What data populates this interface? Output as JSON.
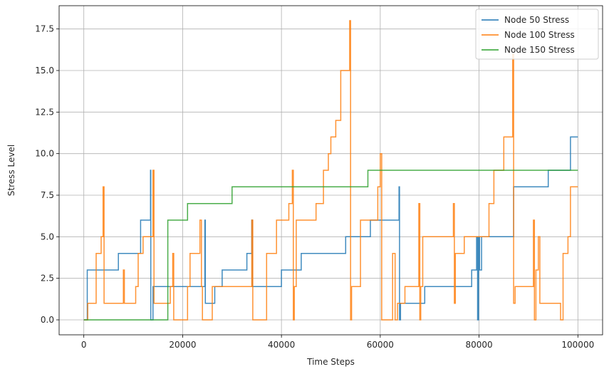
{
  "chart_data": {
    "type": "line",
    "title": "",
    "xlabel": "Time Steps",
    "ylabel": "Stress Level",
    "xlim": [
      -5000,
      105000
    ],
    "ylim": [
      -0.9,
      18.9
    ],
    "xticks": [
      0,
      20000,
      40000,
      60000,
      80000,
      100000
    ],
    "xtick_labels": [
      "0",
      "20000",
      "40000",
      "60000",
      "80000",
      "100000"
    ],
    "yticks": [
      0,
      2.5,
      5,
      7.5,
      10,
      12.5,
      15,
      17.5
    ],
    "ytick_labels": [
      "0.0",
      "2.5",
      "5.0",
      "7.5",
      "10.0",
      "12.5",
      "15.0",
      "17.5"
    ],
    "grid": true,
    "legend_position": "top-right",
    "series": [
      {
        "name": "Node 50 Stress",
        "color": "#1f77b4",
        "x": [
          0,
          500,
          700,
          700,
          7000,
          7000,
          11500,
          11500,
          13500,
          13500,
          13550,
          13550,
          14000,
          14000,
          24500,
          24500,
          24600,
          24600,
          26500,
          26500,
          28000,
          28000,
          33000,
          33000,
          34000,
          34000,
          34100,
          34100,
          40000,
          40000,
          44000,
          44000,
          53000,
          53000,
          58000,
          58000,
          63800,
          63800,
          63900,
          63900,
          64100,
          64100,
          69000,
          69000,
          78500,
          78500,
          79500,
          79500,
          79700,
          79700,
          79900,
          79900,
          80100,
          80100,
          80500,
          80500,
          87000,
          87000,
          94000,
          94000,
          98500,
          98500,
          100000
        ],
        "y": [
          0,
          0,
          0,
          3,
          3,
          4,
          4,
          6,
          6,
          9,
          9,
          0,
          0,
          2,
          2,
          6,
          6,
          1,
          1,
          2,
          2,
          3,
          3,
          4,
          4,
          6,
          6,
          2,
          2,
          3,
          3,
          4,
          4,
          5,
          5,
          6,
          6,
          8,
          8,
          0,
          0,
          1,
          1,
          2,
          2,
          3,
          3,
          5,
          5,
          0,
          0,
          5,
          5,
          3,
          3,
          5,
          5,
          8,
          8,
          9,
          9,
          11,
          11
        ]
      },
      {
        "name": "Node 100 Stress",
        "color": "#ff7f0e",
        "x": [
          0,
          800,
          800,
          2500,
          2500,
          3500,
          3500,
          3900,
          3900,
          4100,
          4100,
          8000,
          8000,
          8200,
          8200,
          10500,
          10500,
          11000,
          11000,
          12000,
          12000,
          14000,
          14000,
          14200,
          14200,
          17500,
          17500,
          18000,
          18000,
          18200,
          18200,
          21000,
          21000,
          21500,
          21500,
          23500,
          23500,
          23800,
          23800,
          24000,
          24000,
          26000,
          26000,
          27000,
          27000,
          34000,
          34000,
          34200,
          34200,
          37000,
          37000,
          39000,
          39000,
          41500,
          41500,
          42200,
          42200,
          42400,
          42400,
          42600,
          42600,
          43000,
          43000,
          47000,
          47000,
          48500,
          48500,
          49500,
          49500,
          50000,
          50000,
          51000,
          51000,
          52000,
          52000,
          53800,
          53800,
          54000,
          54000,
          54200,
          54200,
          56000,
          56000,
          59500,
          59500,
          60000,
          60000,
          60300,
          60300,
          62500,
          62500,
          63000,
          63000,
          63500,
          63500,
          65000,
          65000,
          67000,
          67000,
          67800,
          67800,
          68000,
          68000,
          68200,
          68200,
          68600,
          68600,
          72000,
          72000,
          74800,
          74800,
          75000,
          75000,
          75200,
          75200,
          77000,
          77000,
          80000,
          80000,
          82000,
          82000,
          83000,
          83000,
          85000,
          85000,
          86800,
          86800,
          87000,
          87000,
          87300,
          87300,
          88000,
          88000,
          91000,
          91000,
          91200,
          91200,
          91500,
          91500,
          92000,
          92000,
          92300,
          92300,
          96500,
          96500,
          97000,
          97000,
          98000,
          98000,
          98500,
          98500,
          100000
        ],
        "y": [
          0,
          0,
          1,
          1,
          4,
          4,
          5,
          5,
          8,
          8,
          1,
          1,
          3,
          3,
          1,
          1,
          2,
          2,
          4,
          4,
          5,
          5,
          9,
          9,
          1,
          1,
          2,
          2,
          4,
          4,
          0,
          0,
          2,
          2,
          4,
          4,
          6,
          6,
          2,
          2,
          0,
          0,
          2,
          2,
          2,
          2,
          6,
          6,
          0,
          0,
          4,
          4,
          6,
          6,
          7,
          7,
          9,
          9,
          0,
          0,
          2,
          2,
          6,
          6,
          7,
          7,
          9,
          9,
          10,
          10,
          11,
          11,
          12,
          12,
          15,
          15,
          18,
          18,
          0,
          0,
          2,
          2,
          6,
          6,
          8,
          8,
          10,
          10,
          0,
          0,
          4,
          4,
          0,
          0,
          1,
          1,
          2,
          2,
          2,
          2,
          7,
          7,
          0,
          0,
          2,
          2,
          5,
          5,
          5,
          5,
          7,
          7,
          1,
          1,
          4,
          4,
          5,
          5,
          5,
          5,
          7,
          7,
          9,
          9,
          11,
          11,
          16,
          16,
          1,
          1,
          2,
          2,
          2,
          2,
          6,
          6,
          0,
          0,
          3,
          3,
          5,
          5,
          1,
          1,
          0,
          0,
          4,
          4,
          5,
          5,
          8,
          8
        ]
      },
      {
        "name": "Node 150 Stress",
        "color": "#2ca02c",
        "x": [
          0,
          17000,
          17000,
          21000,
          21000,
          30000,
          30000,
          57500,
          57500,
          100000
        ],
        "y": [
          0,
          0,
          6,
          6,
          7,
          7,
          8,
          8,
          9,
          9
        ]
      }
    ]
  }
}
